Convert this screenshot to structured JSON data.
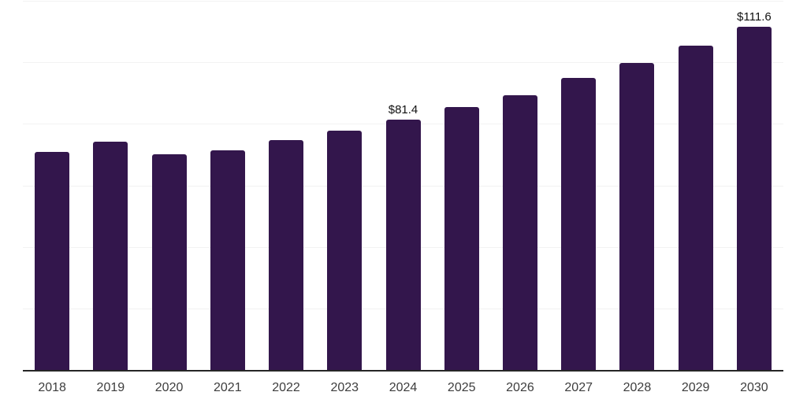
{
  "chart_data": {
    "type": "bar",
    "title": "",
    "xlabel": "",
    "ylabel": "",
    "categories": [
      "2018",
      "2019",
      "2020",
      "2021",
      "2022",
      "2023",
      "2024",
      "2025",
      "2026",
      "2027",
      "2028",
      "2029",
      "2030"
    ],
    "values": [
      70.9,
      74.2,
      70.1,
      71.3,
      74.6,
      77.9,
      81.4,
      85.5,
      89.4,
      94.9,
      99.9,
      105.4,
      111.6
    ],
    "data_labels": [
      {
        "category": "2024",
        "text": "$81.4"
      },
      {
        "category": "2030",
        "text": "$111.6"
      }
    ],
    "ylim": [
      0,
      120
    ],
    "gridline_step": 20,
    "grid": true,
    "legend": false,
    "colors": {
      "bar": "#33164c",
      "grid": "#f2f2f2",
      "axis": "#262626",
      "tick_label": "#3d3d3d",
      "data_label": "#111111",
      "background": "#ffffff"
    }
  }
}
